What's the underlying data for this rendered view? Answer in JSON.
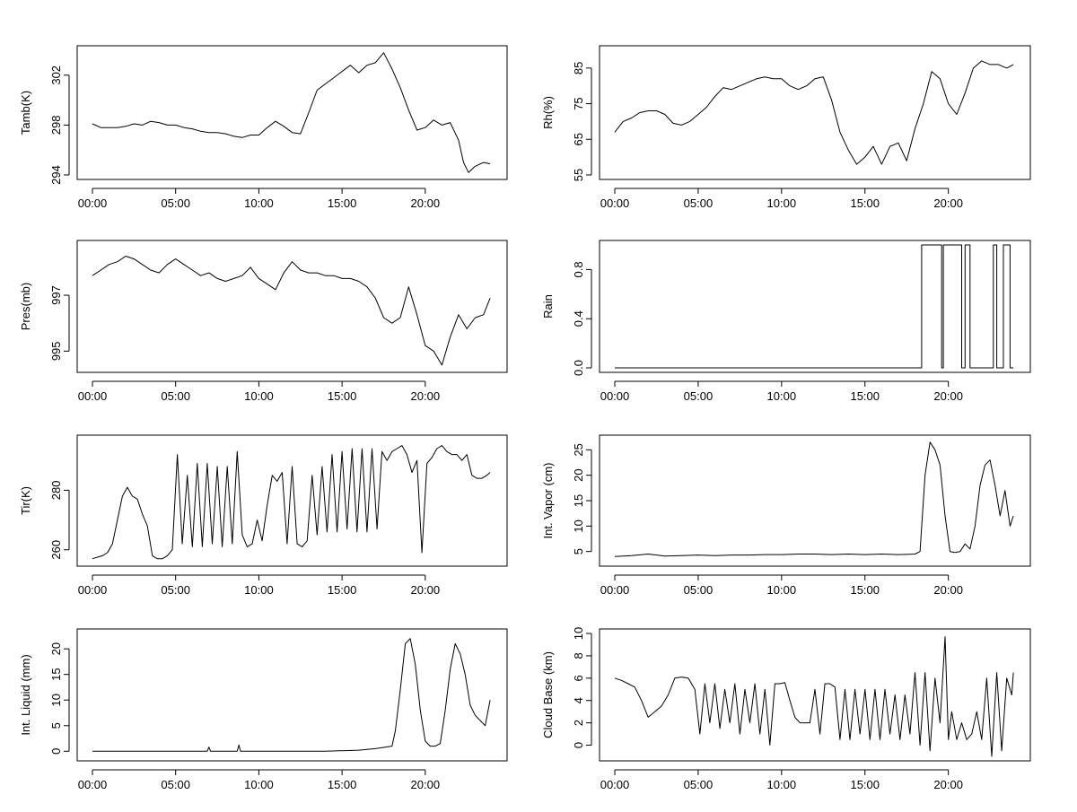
{
  "chart_data": [
    {
      "type": "line",
      "ylabel": "Tamb(K)",
      "xticks": [
        "00:00",
        "05:00",
        "10:00",
        "15:00",
        "20:00"
      ],
      "yticks": [
        294,
        298,
        302
      ],
      "xlim": [
        0,
        24
      ],
      "ylim": [
        294,
        304
      ],
      "series": [
        {
          "x": [
            0,
            0.5,
            1,
            1.5,
            2,
            2.5,
            3,
            3.5,
            4,
            4.5,
            5,
            5.5,
            6,
            6.5,
            7,
            7.5,
            8,
            8.5,
            9,
            9.5,
            10,
            10.5,
            11,
            11.5,
            12,
            12.5,
            13,
            13.5,
            14,
            14.5,
            15,
            15.5,
            16,
            16.5,
            17,
            17.5,
            18,
            18.5,
            19,
            19.5,
            20,
            20.5,
            21,
            21.5,
            22,
            22.3,
            22.6,
            23,
            23.5,
            23.9
          ],
          "y": [
            298.1,
            297.8,
            297.8,
            297.8,
            297.9,
            298.1,
            298.0,
            298.3,
            298.2,
            298.0,
            298.0,
            297.8,
            297.7,
            297.5,
            297.4,
            297.4,
            297.3,
            297.1,
            297.0,
            297.2,
            297.2,
            297.8,
            298.3,
            297.9,
            297.4,
            297.3,
            299.0,
            300.8,
            301.3,
            301.8,
            302.3,
            302.8,
            302.2,
            302.8,
            303.0,
            303.8,
            302.5,
            301.0,
            299.2,
            297.6,
            297.8,
            298.4,
            298.0,
            298.2,
            296.8,
            295.0,
            294.2,
            294.7,
            295.0,
            294.9
          ]
        }
      ]
    },
    {
      "type": "line",
      "ylabel": "Rh(%)",
      "xticks": [
        "00:00",
        "05:00",
        "10:00",
        "15:00",
        "20:00"
      ],
      "yticks": [
        55,
        65,
        75,
        85
      ],
      "xlim": [
        0,
        24
      ],
      "ylim": [
        55,
        90
      ],
      "series": [
        {
          "x": [
            0,
            0.5,
            1,
            1.5,
            2,
            2.5,
            3,
            3.5,
            4,
            4.5,
            5,
            5.5,
            6,
            6.5,
            7,
            7.5,
            8,
            8.5,
            9,
            9.5,
            10,
            10.5,
            11,
            11.5,
            12,
            12.5,
            13,
            13.5,
            14,
            14.5,
            15,
            15.5,
            16,
            16.5,
            17,
            17.5,
            18,
            18.5,
            19,
            19.5,
            20,
            20.5,
            21,
            21.5,
            22,
            22.5,
            23,
            23.5,
            23.9
          ],
          "y": [
            67,
            70,
            71,
            72.5,
            73,
            73,
            72,
            69.5,
            69,
            70,
            72,
            74,
            77,
            79.5,
            79,
            80,
            81,
            82,
            82.5,
            82,
            82,
            80,
            79,
            80,
            82,
            82.5,
            76,
            67,
            62,
            58,
            60,
            63,
            58,
            63,
            64,
            59,
            68,
            75,
            84,
            82,
            75,
            72,
            78,
            85,
            87,
            86,
            86,
            85,
            86
          ]
        }
      ]
    },
    {
      "type": "line",
      "ylabel": "Pres(mb)",
      "xticks": [
        "00:00",
        "05:00",
        "10:00",
        "15:00",
        "20:00"
      ],
      "yticks": [
        995,
        997
      ],
      "xlim": [
        0,
        24
      ],
      "ylim": [
        994.4,
        998.8
      ],
      "series": [
        {
          "x": [
            0,
            0.5,
            1,
            1.5,
            2,
            2.5,
            3,
            3.5,
            4,
            4.5,
            5,
            5.5,
            6,
            6.5,
            7,
            7.5,
            8,
            8.5,
            9,
            9.5,
            10,
            10.5,
            11,
            11.5,
            12,
            12.5,
            13,
            13.5,
            14,
            14.5,
            15,
            15.5,
            16,
            16.5,
            17,
            17.5,
            18,
            18.5,
            19,
            19.5,
            20,
            20.5,
            21,
            21.5,
            22,
            22.5,
            23,
            23.5,
            23.9
          ],
          "y": [
            997.7,
            997.9,
            998.1,
            998.2,
            998.4,
            998.3,
            998.1,
            997.9,
            997.8,
            998.1,
            998.3,
            998.1,
            997.9,
            997.7,
            997.8,
            997.6,
            997.5,
            997.6,
            997.7,
            998.0,
            997.6,
            997.4,
            997.2,
            997.8,
            998.2,
            997.9,
            997.8,
            997.8,
            997.7,
            997.7,
            997.6,
            997.6,
            997.5,
            997.3,
            996.9,
            996.2,
            996.0,
            996.2,
            997.3,
            996.3,
            995.2,
            995.0,
            994.5,
            995.5,
            996.3,
            995.8,
            996.2,
            996.3,
            996.9
          ]
        }
      ]
    },
    {
      "type": "line",
      "ylabel": "Rain",
      "xticks": [
        "00:00",
        "05:00",
        "10:00",
        "15:00",
        "20:00"
      ],
      "yticks": [
        "0.0",
        "0.4",
        "0.8"
      ],
      "xlim": [
        0,
        24
      ],
      "ylim": [
        0,
        1
      ],
      "series": [
        {
          "x": [
            0,
            18.4,
            18.4,
            19.6,
            19.6,
            19.7,
            19.7,
            20.8,
            20.8,
            21.0,
            21.0,
            21.3,
            21.3,
            22.7,
            22.7,
            22.9,
            22.9,
            23.3,
            23.3,
            23.7,
            23.7,
            23.9
          ],
          "y": [
            0,
            0,
            1,
            1,
            0,
            0,
            1,
            1,
            0,
            0,
            1,
            1,
            0,
            0,
            1,
            1,
            0,
            0,
            1,
            1,
            0,
            0
          ]
        }
      ]
    },
    {
      "type": "line",
      "ylabel": "Tir(K)",
      "xticks": [
        "00:00",
        "05:00",
        "10:00",
        "15:00",
        "20:00"
      ],
      "yticks": [
        260,
        280
      ],
      "xlim": [
        0,
        24
      ],
      "ylim": [
        256,
        297
      ],
      "series": [
        {
          "x": [
            0,
            0.3,
            0.6,
            0.9,
            1.2,
            1.5,
            1.8,
            2.1,
            2.4,
            2.7,
            3.0,
            3.3,
            3.6,
            3.9,
            4.2,
            4.5,
            4.8,
            5.1,
            5.4,
            5.7,
            6.0,
            6.3,
            6.6,
            6.9,
            7.2,
            7.5,
            7.8,
            8.1,
            8.4,
            8.7,
            9.0,
            9.3,
            9.6,
            9.9,
            10.2,
            10.5,
            10.8,
            11.1,
            11.4,
            11.7,
            12.0,
            12.3,
            12.6,
            12.9,
            13.2,
            13.5,
            13.8,
            14.1,
            14.4,
            14.7,
            15.0,
            15.3,
            15.6,
            15.9,
            16.2,
            16.5,
            16.8,
            17.1,
            17.4,
            17.7,
            18.0,
            18.3,
            18.6,
            18.9,
            19.2,
            19.5,
            19.8,
            20.1,
            20.4,
            20.7,
            21.0,
            21.3,
            21.6,
            21.9,
            22.2,
            22.5,
            22.8,
            23.1,
            23.4,
            23.7,
            23.9
          ],
          "y": [
            257,
            257.5,
            258,
            259,
            262,
            270,
            278,
            281,
            278,
            277,
            272,
            268,
            258,
            257,
            257,
            258,
            260,
            292,
            262,
            285,
            261,
            289,
            261,
            289,
            262,
            288,
            261,
            288,
            262,
            293,
            265,
            261,
            262,
            270,
            263,
            275,
            285,
            283,
            286,
            262,
            288,
            262,
            261,
            263,
            285,
            265,
            288,
            266,
            292,
            266,
            293,
            267,
            294,
            266,
            294,
            266,
            294,
            267,
            293,
            290,
            293,
            294,
            295,
            292,
            286,
            290,
            259,
            289,
            291,
            294,
            295,
            293,
            292,
            292,
            290,
            292,
            285,
            284,
            284,
            285,
            286
          ]
        }
      ]
    },
    {
      "type": "line",
      "ylabel": "Int. Vapor (cm)",
      "xticks": [
        "00:00",
        "05:00",
        "10:00",
        "15:00",
        "20:00"
      ],
      "yticks": [
        5,
        10,
        15,
        20,
        25
      ],
      "xlim": [
        0,
        24
      ],
      "ylim": [
        3,
        27
      ],
      "series": [
        {
          "x": [
            0,
            1,
            2,
            3,
            4,
            5,
            6,
            7,
            8,
            9,
            10,
            11,
            12,
            13,
            14,
            15,
            16,
            17,
            18,
            18.3,
            18.6,
            18.9,
            19.2,
            19.5,
            19.8,
            20.1,
            20.4,
            20.7,
            21.0,
            21.3,
            21.6,
            21.9,
            22.2,
            22.5,
            22.8,
            23.1,
            23.4,
            23.7,
            23.9
          ],
          "y": [
            4,
            4.2,
            4.5,
            4.1,
            4.2,
            4.3,
            4.2,
            4.3,
            4.3,
            4.4,
            4.4,
            4.5,
            4.5,
            4.4,
            4.5,
            4.4,
            4.5,
            4.4,
            4.5,
            5,
            20,
            26.5,
            25,
            22,
            12,
            5,
            4.8,
            5,
            6.5,
            5.5,
            10,
            18,
            22,
            23,
            18,
            12,
            17,
            10,
            12
          ]
        }
      ]
    },
    {
      "type": "line",
      "ylabel": "Int. Liquid (mm)",
      "xticks": [
        "00:00",
        "05:00",
        "10:00",
        "15:00",
        "20:00"
      ],
      "yticks": [
        0,
        5,
        10,
        15,
        20
      ],
      "xlim": [
        0,
        24
      ],
      "ylim": [
        -1,
        23
      ],
      "series": [
        {
          "x": [
            0,
            2,
            4,
            6,
            6.9,
            7.0,
            7.1,
            8,
            8.7,
            8.8,
            8.9,
            10,
            12,
            14,
            16,
            17,
            18,
            18.2,
            18.5,
            18.8,
            19.1,
            19.4,
            19.7,
            20.0,
            20.3,
            20.6,
            20.9,
            21.2,
            21.5,
            21.8,
            22.1,
            22.4,
            22.7,
            23.0,
            23.3,
            23.6,
            23.9
          ],
          "y": [
            0,
            0,
            0,
            0,
            0,
            0.8,
            0,
            0,
            0,
            1.2,
            0,
            0,
            0,
            0,
            0.2,
            0.5,
            1,
            4,
            12,
            21,
            22,
            17,
            8,
            2,
            1,
            1,
            1.5,
            8,
            16,
            21,
            19,
            15,
            9,
            7,
            6,
            5,
            10
          ]
        }
      ]
    },
    {
      "type": "line",
      "ylabel": "Cloud Base (km)",
      "xticks": [
        "00:00",
        "05:00",
        "10:00",
        "15:00",
        "20:00"
      ],
      "yticks": [
        0,
        2,
        4,
        6,
        8,
        10
      ],
      "xlim": [
        0,
        24
      ],
      "ylim": [
        -1,
        10
      ],
      "series": [
        {
          "x": [
            0,
            0.4,
            0.8,
            1.2,
            1.6,
            2.0,
            2.4,
            2.8,
            3.2,
            3.6,
            4.0,
            4.4,
            4.8,
            5.1,
            5.4,
            5.7,
            6.0,
            6.3,
            6.6,
            6.9,
            7.2,
            7.5,
            7.8,
            8.1,
            8.4,
            8.7,
            9.0,
            9.3,
            9.6,
            9.9,
            10.2,
            10.5,
            10.8,
            11.1,
            11.4,
            11.7,
            12.0,
            12.3,
            12.6,
            12.9,
            13.2,
            13.5,
            13.8,
            14.1,
            14.4,
            14.7,
            15.0,
            15.3,
            15.6,
            15.9,
            16.2,
            16.5,
            16.8,
            17.1,
            17.4,
            17.7,
            18.0,
            18.3,
            18.6,
            18.9,
            19.2,
            19.5,
            19.8,
            20.0,
            20.2,
            20.5,
            20.8,
            21.1,
            21.4,
            21.7,
            22.0,
            22.3,
            22.6,
            22.9,
            23.2,
            23.5,
            23.8,
            23.9
          ],
          "y": [
            6,
            5.8,
            5.5,
            5.2,
            4,
            2.5,
            3,
            3.5,
            4.5,
            6,
            6.1,
            6,
            5,
            1,
            5.5,
            2,
            5.5,
            1.5,
            5,
            2,
            5.5,
            1,
            5,
            2,
            5.5,
            1,
            5,
            0,
            5.5,
            5.5,
            5.6,
            4,
            2.5,
            2,
            2,
            2,
            5,
            1,
            5.5,
            5.5,
            5.2,
            0.5,
            5,
            0.5,
            5,
            1,
            5,
            0.5,
            5,
            0.5,
            5,
            1,
            4.5,
            0.5,
            4.5,
            1,
            6.5,
            0,
            6.5,
            -0.5,
            6,
            2,
            9.7,
            0.5,
            3,
            0.5,
            2,
            0.5,
            1,
            3,
            0.5,
            6,
            -1,
            6.5,
            -0.5,
            6,
            4.5,
            6.5
          ]
        }
      ]
    }
  ]
}
